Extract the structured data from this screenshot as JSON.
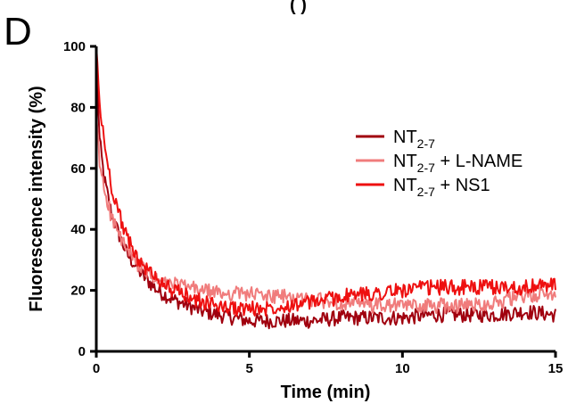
{
  "panel_label": "D",
  "header_fragment": "( )",
  "chart_data": {
    "type": "line",
    "title": "",
    "xlabel": "Time (min)",
    "ylabel": "Fluorescence intensity (%)",
    "xlim": [
      0,
      15
    ],
    "ylim": [
      0,
      100
    ],
    "xticks": [
      0,
      5,
      10,
      15
    ],
    "yticks": [
      0,
      20,
      40,
      60,
      80,
      100
    ],
    "grid": false,
    "legend_position": "right",
    "series": [
      {
        "name": "NT2-7",
        "legend": {
          "main": "NT",
          "sub": "2-7",
          "suffix": ""
        },
        "color": "#a0000e",
        "x": [
          0,
          0.1,
          0.25,
          0.5,
          0.75,
          1.0,
          1.5,
          2.0,
          2.5,
          3.0,
          3.5,
          4.0,
          4.5,
          5.0,
          5.5,
          6.0,
          7.0,
          8.0,
          9.0,
          10.0,
          11.0,
          12.0,
          13.0,
          14.0,
          15.0
        ],
        "y": [
          100,
          70,
          57,
          45,
          38,
          32,
          25,
          20,
          17,
          15,
          13,
          12,
          11,
          10,
          10,
          10,
          10,
          11,
          11,
          11,
          12,
          12,
          12,
          13,
          12
        ]
      },
      {
        "name": "NT2-7 + L-NAME",
        "legend": {
          "main": "NT",
          "sub": "2-7",
          "suffix": " + L-NAME"
        },
        "color": "#f07c7c",
        "x": [
          0,
          0.1,
          0.25,
          0.5,
          0.75,
          1.0,
          1.5,
          2.0,
          2.5,
          3.0,
          3.5,
          4.0,
          4.5,
          5.0,
          5.5,
          6.0,
          7.0,
          8.0,
          9.0,
          10.0,
          11.0,
          12.0,
          13.0,
          14.0,
          15.0
        ],
        "y": [
          78,
          62,
          54,
          44,
          38,
          33,
          27,
          23,
          22,
          21,
          20,
          19,
          19,
          19,
          18,
          18,
          17,
          16,
          15,
          15,
          15,
          15,
          16,
          18,
          19
        ]
      },
      {
        "name": "NT2-7 + NS1",
        "legend": {
          "main": "NT",
          "sub": "2-7",
          "suffix": " + NS1"
        },
        "color": "#ee1010",
        "x": [
          0,
          0.1,
          0.25,
          0.5,
          0.75,
          1.0,
          1.5,
          2.0,
          2.5,
          3.0,
          3.5,
          4.0,
          4.5,
          5.0,
          5.5,
          6.0,
          7.0,
          8.0,
          9.0,
          10.0,
          11.0,
          12.0,
          13.0,
          14.0,
          15.0
        ],
        "y": [
          100,
          82,
          69,
          54,
          45,
          37,
          28,
          24,
          20,
          18,
          16,
          15,
          14,
          14,
          14,
          15,
          16,
          18,
          19,
          20,
          21,
          21,
          21,
          21,
          22
        ]
      }
    ]
  }
}
